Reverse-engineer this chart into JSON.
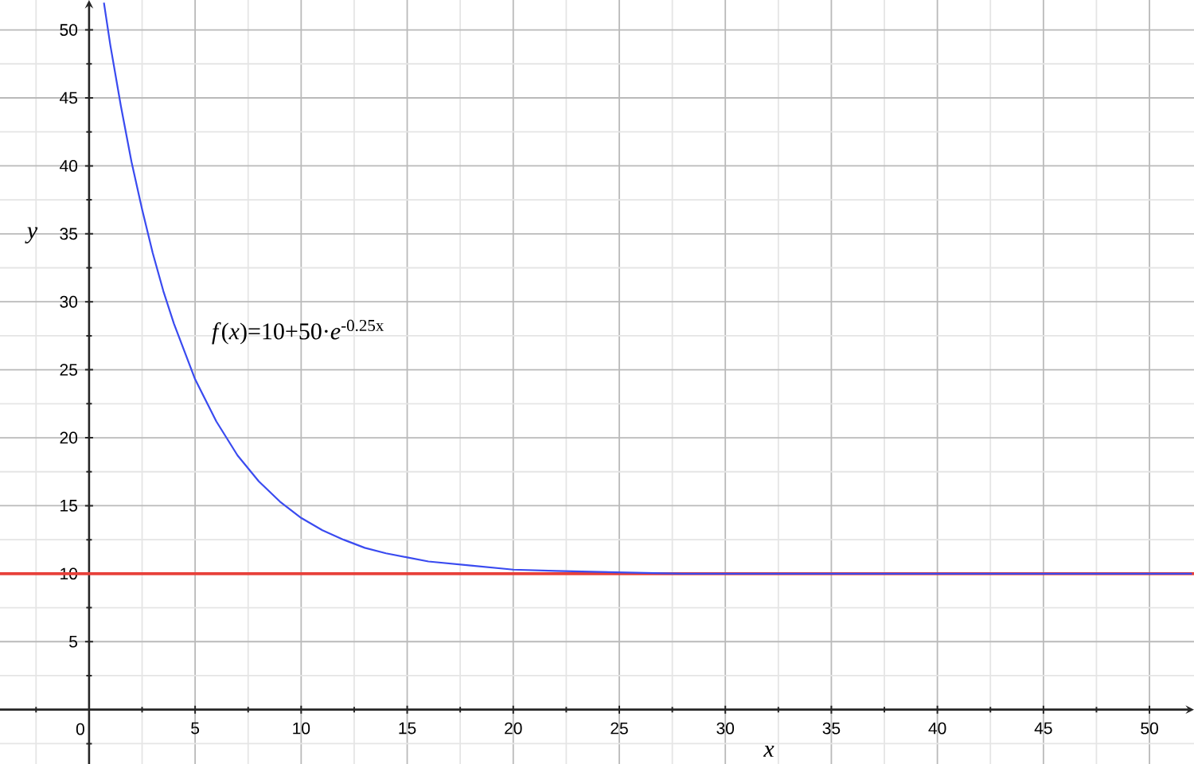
{
  "chart_data": {
    "type": "line",
    "xlabel": "x",
    "ylabel": "y",
    "annotations": [
      "*f*(*x*)=10+50·*e*$^{-0.25x}$"
    ],
    "x": [
      0.7,
      1,
      1.5,
      2,
      2.5,
      3,
      3.5,
      4,
      5,
      6,
      7,
      8,
      9,
      10,
      11,
      12,
      13,
      14,
      15,
      16,
      18,
      20,
      22,
      25,
      28,
      30,
      35,
      40,
      45,
      52
    ],
    "series": [
      {
        "color": "#3a4bf0",
        "values": [
          52.0,
          48.9,
          44.4,
          40.3,
          36.8,
          33.6,
          30.8,
          28.4,
          24.3,
          21.2,
          18.7,
          16.8,
          15.3,
          14.1,
          13.2,
          12.5,
          11.9,
          11.5,
          11.2,
          10.9,
          10.6,
          10.3,
          10.2,
          10.1,
          10.0,
          10.0,
          10,
          10,
          10,
          10
        ]
      }
    ],
    "xlim": [
      -4.2,
      52.1
    ],
    "ylim": [
      -4,
      52.2
    ],
    "xticks": [
      {
        "value": -2.5,
        "label": null
      },
      {
        "value": 0,
        "label": "0"
      },
      {
        "value": 2.5,
        "label": null
      },
      5,
      {
        "value": 7.5,
        "label": null
      },
      10,
      {
        "value": 12.5,
        "label": null
      },
      15,
      {
        "value": 17.5,
        "label": null
      },
      20,
      {
        "value": 22.5,
        "label": null
      },
      25,
      {
        "value": 27.5,
        "label": null
      },
      30,
      {
        "value": 32.5,
        "label": null
      },
      35,
      {
        "value": 37.5,
        "label": null
      },
      40,
      {
        "value": 42.5,
        "label": null
      },
      45,
      {
        "value": 47.5,
        "label": null
      },
      50
    ],
    "yticks": [
      {
        "value": -2.5,
        "label": null
      },
      {
        "value": 2.5,
        "label": null
      },
      5,
      {
        "value": 7.5,
        "label": null
      },
      10,
      {
        "value": 12.5,
        "label": null
      },
      15,
      {
        "value": 17.5,
        "label": null
      },
      20,
      {
        "value": 22.5,
        "label": null
      },
      25,
      {
        "value": 27.5,
        "label": null
      },
      30,
      {
        "value": 32.5,
        "label": null
      },
      35,
      {
        "value": 37.5,
        "label": null
      },
      40,
      {
        "value": 42.5,
        "label": null
      },
      45,
      {
        "value": 47.5,
        "label": null
      },
      50
    ],
    "grid": true,
    "ref_lines": [
      {
        "axis": "y",
        "value": 10,
        "color": "#e8403a"
      }
    ]
  }
}
